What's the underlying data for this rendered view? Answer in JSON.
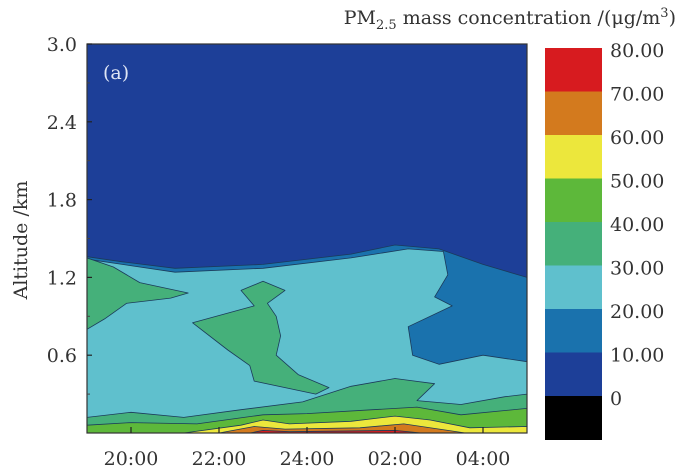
{
  "chart_data": {
    "type": "heatmap",
    "subtype": "filled-contour",
    "panel_label": "(a)",
    "title": "PM2.5 mass concentration /(μg/m3)",
    "title_parts": {
      "pm": "PM",
      "sub": "2.5",
      "mid": " mass concentration /(μg/m",
      "sup": "3",
      "end": ")"
    },
    "xlabel": "",
    "ylabel": "Altitude /km",
    "x_unit": "hours after 19:00",
    "xlim": [
      0,
      10
    ],
    "ylim": [
      0,
      3.0
    ],
    "x_ticks": [
      {
        "value": 1,
        "label": "20:00"
      },
      {
        "value": 3,
        "label": "22:00"
      },
      {
        "value": 5,
        "label": "24:00"
      },
      {
        "value": 7,
        "label": "02:00"
      },
      {
        "value": 9,
        "label": "04:00"
      }
    ],
    "y_ticks": [
      {
        "value": 0.6,
        "label": "0.6"
      },
      {
        "value": 1.2,
        "label": "1.2"
      },
      {
        "value": 1.8,
        "label": "1.8"
      },
      {
        "value": 2.4,
        "label": "2.4"
      },
      {
        "value": 3.0,
        "label": "3.0"
      }
    ],
    "colorbar": {
      "levels": [
        {
          "label": "80.00",
          "color": "#d71b1f"
        },
        {
          "label": "70.00",
          "color": "#d37a1e"
        },
        {
          "label": "60.00",
          "color": "#ece73c"
        },
        {
          "label": "50.00",
          "color": "#5db83a"
        },
        {
          "label": "40.00",
          "color": "#45b07a"
        },
        {
          "label": "30.00",
          "color": "#5fc0cd"
        },
        {
          "label": "20.00",
          "color": "#1a72ad"
        },
        {
          "label": "10.00",
          "color": "#1d3f98"
        },
        {
          "label": "0",
          "color": "#000000"
        }
      ]
    },
    "regions": [
      {
        "name": "background-0-10",
        "level": "0-10",
        "color": "#1d3f98",
        "points": [
          [
            0,
            0
          ],
          [
            10,
            0
          ],
          [
            10,
            3
          ],
          [
            0,
            3
          ]
        ]
      },
      {
        "name": "band-10-20",
        "level": "10-20",
        "color": "#1a72ad",
        "points": [
          [
            0,
            0
          ],
          [
            0,
            1.36
          ],
          [
            0.8,
            1.32
          ],
          [
            2,
            1.27
          ],
          [
            4,
            1.3
          ],
          [
            6,
            1.38
          ],
          [
            7,
            1.45
          ],
          [
            8,
            1.42
          ],
          [
            9,
            1.3
          ],
          [
            10,
            1.2
          ],
          [
            10,
            0
          ]
        ]
      },
      {
        "name": "band-20-30",
        "level": "20-30",
        "color": "#5fc0cd",
        "points": [
          [
            0,
            0
          ],
          [
            0,
            1.34
          ],
          [
            0.8,
            1.3
          ],
          [
            2,
            1.24
          ],
          [
            4,
            1.27
          ],
          [
            6,
            1.35
          ],
          [
            7.3,
            1.42
          ],
          [
            8.1,
            1.4
          ],
          [
            8.2,
            1.22
          ],
          [
            7.9,
            1.05
          ],
          [
            8.3,
            0.98
          ],
          [
            7.3,
            0.82
          ],
          [
            7.4,
            0.6
          ],
          [
            8,
            0.53
          ],
          [
            9,
            0.6
          ],
          [
            10,
            0.55
          ],
          [
            10,
            0
          ]
        ]
      },
      {
        "name": "blob-30-40-left",
        "level": "30-40",
        "color": "#45b07a",
        "points": [
          [
            0,
            1.35
          ],
          [
            0.6,
            1.28
          ],
          [
            1.2,
            1.16
          ],
          [
            2.3,
            1.08
          ],
          [
            1.9,
            1.04
          ],
          [
            0.9,
            1.0
          ],
          [
            0.4,
            0.88
          ],
          [
            0,
            0.8
          ]
        ]
      },
      {
        "name": "blob-30-40-center",
        "level": "30-40",
        "color": "#45b07a",
        "points": [
          [
            3.5,
            1.1
          ],
          [
            4,
            1.17
          ],
          [
            4.5,
            1.1
          ],
          [
            4.1,
            1.0
          ],
          [
            4.3,
            0.9
          ],
          [
            4.4,
            0.75
          ],
          [
            4.3,
            0.6
          ],
          [
            4.8,
            0.45
          ],
          [
            5.5,
            0.35
          ],
          [
            5.2,
            0.3
          ],
          [
            3.8,
            0.4
          ],
          [
            3.7,
            0.52
          ],
          [
            3.2,
            0.64
          ],
          [
            2.4,
            0.85
          ],
          [
            3.8,
            0.98
          ]
        ]
      },
      {
        "name": "band-30-40-bottom",
        "level": "30-40",
        "color": "#45b07a",
        "points": [
          [
            0,
            0
          ],
          [
            0,
            0.12
          ],
          [
            1,
            0.16
          ],
          [
            2.2,
            0.12
          ],
          [
            3.5,
            0.18
          ],
          [
            4.9,
            0.24
          ],
          [
            6,
            0.36
          ],
          [
            7,
            0.42
          ],
          [
            7.9,
            0.38
          ],
          [
            7.5,
            0.25
          ],
          [
            8.5,
            0.22
          ],
          [
            9.5,
            0.28
          ],
          [
            10,
            0.3
          ],
          [
            10,
            0
          ]
        ]
      },
      {
        "name": "band-40-50",
        "level": "40-50",
        "color": "#5db83a",
        "points": [
          [
            0,
            0
          ],
          [
            0,
            0.06
          ],
          [
            1,
            0.08
          ],
          [
            2.5,
            0.07
          ],
          [
            4,
            0.14
          ],
          [
            5,
            0.15
          ],
          [
            6.5,
            0.18
          ],
          [
            7.5,
            0.2
          ],
          [
            8.5,
            0.14
          ],
          [
            10,
            0.19
          ],
          [
            10,
            0
          ]
        ]
      },
      {
        "name": "band-50-60",
        "level": "50-60",
        "color": "#ece73c",
        "points": [
          [
            2.2,
            0
          ],
          [
            3.5,
            0.06
          ],
          [
            4,
            0.1
          ],
          [
            4.6,
            0.07
          ],
          [
            6,
            0.09
          ],
          [
            7,
            0.13
          ],
          [
            7.8,
            0.1
          ],
          [
            8.7,
            0.04
          ],
          [
            10,
            0.05
          ],
          [
            10,
            0
          ]
        ]
      },
      {
        "name": "band-60-70",
        "level": "60-70",
        "color": "#d37a1e",
        "points": [
          [
            3,
            0
          ],
          [
            3.8,
            0.05
          ],
          [
            4.5,
            0.03
          ],
          [
            6.2,
            0.04
          ],
          [
            7.2,
            0.07
          ],
          [
            8.2,
            0.02
          ],
          [
            8.6,
            0
          ]
        ]
      },
      {
        "name": "band-70-80",
        "level": "70-80",
        "color": "#d71b1f",
        "points": [
          [
            3.7,
            0
          ],
          [
            4,
            0.02
          ],
          [
            4.6,
            0.01
          ],
          [
            7,
            0.02
          ],
          [
            7.6,
            0
          ]
        ]
      }
    ]
  }
}
